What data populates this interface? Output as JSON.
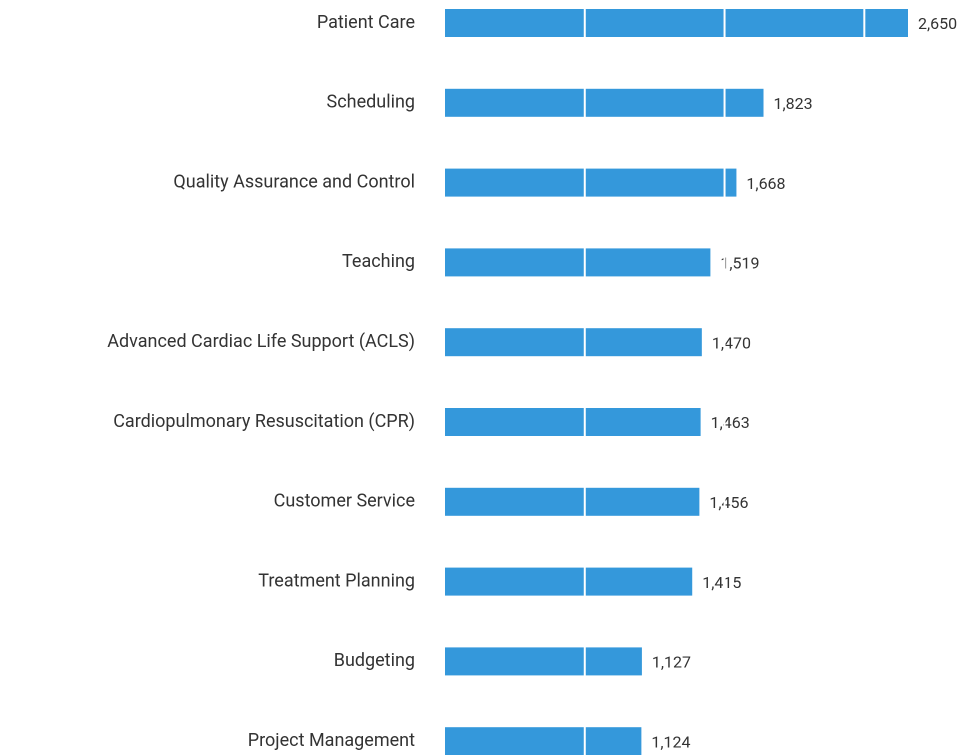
{
  "chart_data": {
    "type": "bar",
    "orientation": "horizontal",
    "categories": [
      "Patient Care",
      "Scheduling",
      "Quality Assurance and Control",
      "Teaching",
      "Advanced Cardiac Life Support (ACLS)",
      "Cardiopulmonary Resuscitation (CPR)",
      "Customer Service",
      "Treatment Planning",
      "Budgeting",
      "Project Management"
    ],
    "values": [
      2650,
      1823,
      1668,
      1519,
      1470,
      1463,
      1456,
      1415,
      1127,
      1124
    ],
    "value_labels": [
      "2,650",
      "1,823",
      "1,668",
      "1,519",
      "1,470",
      "1,463",
      "1,456",
      "1,415",
      "1,127",
      "1,124"
    ],
    "color": "#3498db",
    "xlim": [
      0,
      2650
    ],
    "xticks": [
      800,
      1600,
      2400
    ],
    "grid": true
  }
}
